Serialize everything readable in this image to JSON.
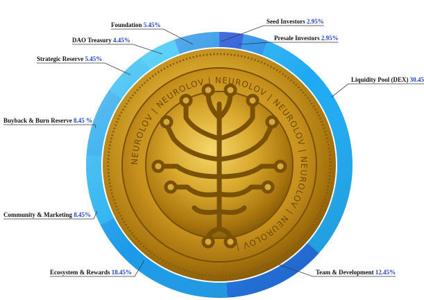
{
  "chart_data": {
    "type": "pie",
    "title": "",
    "center_coin_text": "NEUROLOV",
    "slices": [
      {
        "label": "Seed Investors",
        "value_text": "2.95%",
        "value": 2.95,
        "color": "#1a4fd6"
      },
      {
        "label": "Presale Investors",
        "value_text": "2.95%",
        "value": 2.95,
        "color": "#1f8be6"
      },
      {
        "label": "Liquidity Pool (DEX)",
        "value_text": "30.45%",
        "value": 30.45,
        "color": "#1daaf2"
      },
      {
        "label": "Team & Development",
        "value_text": "12.45%",
        "value": 12.45,
        "color": "#1c6fe0"
      },
      {
        "label": "Ecosystem & Rewards",
        "value_text": "18.45%",
        "value": 18.45,
        "color": "#1a9ae8"
      },
      {
        "label": "Community & Marketing",
        "value_text": "8.45%",
        "value": 8.45,
        "color": "#22b0f0"
      },
      {
        "label": "Buyback & Burn Reserve",
        "value_text": "8.45 %",
        "value": 8.45,
        "color": "#1da4ec"
      },
      {
        "label": "Strategic Reserve",
        "value_text": "5.45%",
        "value": 5.45,
        "color": "#20b6f2"
      },
      {
        "label": "DAO Treasury",
        "value_text": "4.45%",
        "value": 4.45,
        "color": "#2cc2f4"
      },
      {
        "label": "Foundation",
        "value_text": "5.45%",
        "value": 5.45,
        "color": "#1e8fe6"
      }
    ]
  }
}
